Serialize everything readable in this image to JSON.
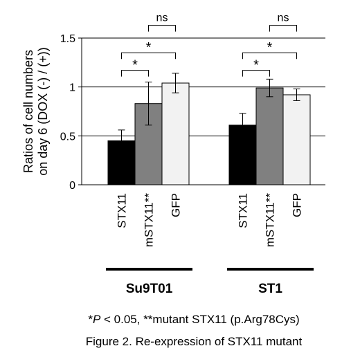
{
  "chart_data": {
    "type": "bar",
    "ylabel_line1": "Ratios of cell numbers",
    "ylabel_line2": "on day 6 (DOX (-) / (+))",
    "ylim": [
      0,
      1.5
    ],
    "yticks": [
      "0",
      "0.5",
      "1",
      "1.5"
    ],
    "gridlines": [
      0.5,
      1.0,
      1.5
    ],
    "categories": [
      "STX11",
      "mSTX11**",
      "GFP"
    ],
    "groups": [
      {
        "name": "Su9T01",
        "values": [
          0.45,
          0.83,
          1.04
        ],
        "errors": [
          0.11,
          0.22,
          0.1
        ],
        "brackets": [
          {
            "from": 0,
            "to": 1,
            "label": "*",
            "level": 1.17
          },
          {
            "from": 0,
            "to": 2,
            "label": "*",
            "level": 1.35
          },
          {
            "from": 1,
            "to": 2,
            "label": "ns",
            "level": 1.63
          }
        ]
      },
      {
        "name": "ST1",
        "values": [
          0.61,
          0.99,
          0.92
        ],
        "errors": [
          0.12,
          0.09,
          0.06
        ],
        "brackets": [
          {
            "from": 0,
            "to": 1,
            "label": "*",
            "level": 1.17
          },
          {
            "from": 0,
            "to": 2,
            "label": "*",
            "level": 1.35
          },
          {
            "from": 1,
            "to": 2,
            "label": "ns",
            "level": 1.63
          }
        ]
      }
    ],
    "colors": [
      "#000000",
      "#808080",
      "#f2f2f2"
    ]
  },
  "footnote": {
    "p_symbol": "*",
    "p_italic": "P",
    "p_rest": " < 0.05, **mutant STX11 (p.Arg78Cys)"
  },
  "caption": "Figure 2. Re-expression of STX11 mutant"
}
